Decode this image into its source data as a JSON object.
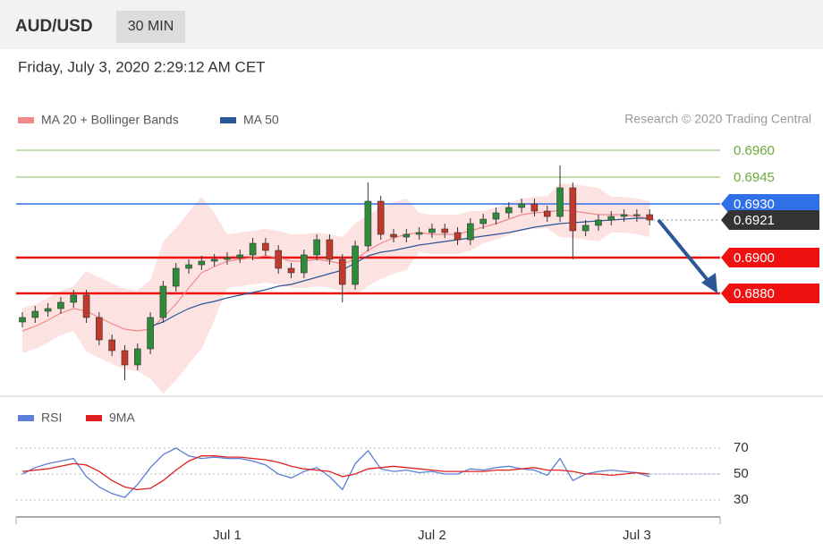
{
  "header": {
    "symbol": "AUD/USD",
    "interval": "30 MIN",
    "datetime": "Friday, July 3, 2020 2:29:12 AM CET",
    "credit": "Research © 2020 Trading Central"
  },
  "chart_data": [
    {
      "type": "candlestick",
      "categories": [
        null,
        null,
        null,
        null,
        null,
        null,
        null,
        null,
        null,
        null,
        null,
        null,
        null,
        null,
        null,
        null,
        "Jul 1",
        null,
        null,
        null,
        null,
        null,
        null,
        null,
        null,
        null,
        null,
        null,
        null,
        null,
        null,
        null,
        "Jul 2",
        null,
        null,
        null,
        null,
        null,
        null,
        null,
        null,
        null,
        null,
        null,
        null,
        null,
        null,
        null,
        "Jul 3",
        null
      ],
      "open": [
        0.6864,
        0.68665,
        0.687,
        0.68715,
        0.6875,
        0.6879,
        0.68665,
        0.6854,
        0.6848,
        0.684,
        0.6849,
        0.68665,
        0.6884,
        0.6894,
        0.6896,
        0.6898,
        0.6899,
        0.69,
        0.69015,
        0.6908,
        0.6904,
        0.6894,
        0.68915,
        0.69015,
        0.691,
        0.6899,
        0.6885,
        0.69065,
        0.69315,
        0.6913,
        0.69115,
        0.6913,
        0.6914,
        0.6916,
        0.6914,
        0.691,
        0.6919,
        0.69215,
        0.6925,
        0.6928,
        0.693,
        0.6926,
        0.6923,
        0.6939,
        0.6915,
        0.6918,
        0.6921,
        0.6923,
        0.6924,
        0.6924
      ],
      "high": [
        0.68695,
        0.6873,
        0.68745,
        0.6878,
        0.6882,
        0.6882,
        0.68695,
        0.6857,
        0.6851,
        0.6852,
        0.68695,
        0.6887,
        0.6897,
        0.6899,
        0.6901,
        0.6902,
        0.6903,
        0.69045,
        0.6911,
        0.6911,
        0.6907,
        0.6897,
        0.69045,
        0.6913,
        0.6913,
        0.6902,
        0.69095,
        0.6942,
        0.69345,
        0.6916,
        0.6916,
        0.6917,
        0.6919,
        0.6919,
        0.6917,
        0.6922,
        0.69245,
        0.6928,
        0.6931,
        0.6933,
        0.6933,
        0.6929,
        0.69515,
        0.6942,
        0.6921,
        0.6924,
        0.6926,
        0.6927,
        0.6927,
        0.6927
      ],
      "low": [
        0.6861,
        0.68635,
        0.6867,
        0.68685,
        0.6872,
        0.68635,
        0.6851,
        0.6845,
        0.68315,
        0.6837,
        0.6846,
        0.68635,
        0.6881,
        0.6891,
        0.6893,
        0.6895,
        0.6896,
        0.6897,
        0.68985,
        0.6901,
        0.6891,
        0.68885,
        0.68885,
        0.68985,
        0.6896,
        0.6875,
        0.6882,
        0.69035,
        0.691,
        0.69085,
        0.69085,
        0.691,
        0.6911,
        0.6911,
        0.6907,
        0.6907,
        0.6916,
        0.69185,
        0.6922,
        0.6925,
        0.6923,
        0.692,
        0.692,
        0.6899,
        0.6912,
        0.6915,
        0.6918,
        0.692,
        0.692,
        0.6918
      ],
      "close": [
        0.68665,
        0.687,
        0.68715,
        0.6875,
        0.6879,
        0.68665,
        0.6854,
        0.6848,
        0.684,
        0.6849,
        0.68665,
        0.6884,
        0.6894,
        0.6896,
        0.6898,
        0.6899,
        0.69,
        0.69015,
        0.6908,
        0.6904,
        0.6894,
        0.68915,
        0.69015,
        0.691,
        0.6899,
        0.6885,
        0.69065,
        0.69315,
        0.6913,
        0.69115,
        0.6913,
        0.6914,
        0.6916,
        0.6914,
        0.691,
        0.6919,
        0.69215,
        0.6925,
        0.6928,
        0.693,
        0.6926,
        0.6923,
        0.6939,
        0.6915,
        0.6918,
        0.6921,
        0.6923,
        0.6924,
        0.6924,
        0.6921
      ],
      "up_color": "#2e8b3a",
      "down_color": "#c0392b",
      "series": [
        {
          "name": "MA 20 + Bollinger Bands",
          "color": "#f08a8a",
          "band_color": "#fde2e2",
          "values": [
            0.6859,
            0.68615,
            0.6865,
            0.6869,
            0.68715,
            0.687,
            0.68665,
            0.6863,
            0.686,
            0.6859,
            0.686,
            0.68665,
            0.6874,
            0.6883,
            0.68915,
            0.6895,
            0.6898,
            0.6899,
            0.69,
            0.6901,
            0.69,
            0.6898,
            0.6898,
            0.6899,
            0.6898,
            0.68965,
            0.6899,
            0.6904,
            0.6908,
            0.6911,
            0.6913,
            0.6914,
            0.6913,
            0.6913,
            0.6913,
            0.6915,
            0.6917,
            0.6919,
            0.69215,
            0.6924,
            0.6925,
            0.69255,
            0.69265,
            0.6926,
            0.6925,
            0.6924,
            0.6924,
            0.6924,
            0.6923,
            0.69215
          ],
          "upper": [
            0.68715,
            0.6874,
            0.68775,
            0.68815,
            0.6884,
            0.68925,
            0.6889,
            0.68855,
            0.68825,
            0.68815,
            0.68875,
            0.6909,
            0.69165,
            0.69255,
            0.6934,
            0.6925,
            0.6913,
            0.6914,
            0.6915,
            0.6916,
            0.6915,
            0.6913,
            0.6913,
            0.6914,
            0.6913,
            0.69115,
            0.6919,
            0.6924,
            0.6928,
            0.6931,
            0.6933,
            0.6925,
            0.6924,
            0.6924,
            0.6924,
            0.6926,
            0.6926,
            0.6928,
            0.69305,
            0.6933,
            0.6934,
            0.69345,
            0.69415,
            0.6941,
            0.694,
            0.6939,
            0.6934,
            0.6934,
            0.6933,
            0.69315
          ],
          "lower": [
            0.68465,
            0.6849,
            0.68525,
            0.68565,
            0.6859,
            0.68475,
            0.6844,
            0.68405,
            0.68375,
            0.68365,
            0.68325,
            0.6824,
            0.68315,
            0.68405,
            0.6849,
            0.6865,
            0.6883,
            0.6884,
            0.6885,
            0.6886,
            0.6885,
            0.6883,
            0.6883,
            0.6884,
            0.6883,
            0.68815,
            0.6879,
            0.6884,
            0.6888,
            0.6891,
            0.6893,
            0.6903,
            0.6902,
            0.6902,
            0.6902,
            0.6904,
            0.6908,
            0.691,
            0.69125,
            0.6915,
            0.6916,
            0.69165,
            0.69115,
            0.6911,
            0.691,
            0.6909,
            0.6914,
            0.6914,
            0.6913,
            0.69115
          ]
        },
        {
          "name": "MA 50",
          "color": "#2b5797",
          "values": [
            null,
            null,
            null,
            null,
            null,
            null,
            null,
            null,
            null,
            null,
            0.68615,
            0.6864,
            0.6868,
            0.68715,
            0.6874,
            0.68755,
            0.68775,
            0.6879,
            0.68805,
            0.6882,
            0.6884,
            0.6885,
            0.6887,
            0.6889,
            0.6891,
            0.6893,
            0.6897,
            0.6901,
            0.6903,
            0.6904,
            0.69055,
            0.6907,
            0.6908,
            0.6909,
            0.691,
            0.6911,
            0.6912,
            0.6913,
            0.6914,
            0.69155,
            0.6917,
            0.6918,
            0.6919,
            0.69195,
            0.692,
            0.69205,
            0.6921,
            0.69215,
            0.6922,
            0.6922
          ]
        }
      ],
      "ylim": [
        0.6824,
        0.6969
      ],
      "levels": [
        {
          "value": 0.696,
          "label": "0.6960",
          "color": "#6aab3a",
          "boxed": false
        },
        {
          "value": 0.6945,
          "label": "0.6945",
          "color": "#6aab3a",
          "boxed": false
        },
        {
          "value": 0.693,
          "label": "0.6930",
          "color": "#2f6fe8",
          "boxed": true
        },
        {
          "value": 0.69,
          "label": "0.6900",
          "color": "#ee1111",
          "boxed": true
        },
        {
          "value": 0.688,
          "label": "0.6880",
          "color": "#ee1111",
          "boxed": true
        }
      ],
      "last_price": {
        "value": 0.6921,
        "label": "0.6921",
        "color": "#333333"
      }
    },
    {
      "type": "line",
      "categories": [
        null,
        null,
        null,
        null,
        null,
        null,
        null,
        null,
        null,
        null,
        null,
        null,
        null,
        null,
        null,
        null,
        "Jul 1",
        null,
        null,
        null,
        null,
        null,
        null,
        null,
        null,
        null,
        null,
        null,
        null,
        null,
        null,
        null,
        "Jul 2",
        null,
        null,
        null,
        null,
        null,
        null,
        null,
        null,
        null,
        null,
        null,
        null,
        null,
        null,
        null,
        "Jul 3",
        null
      ],
      "series": [
        {
          "name": "RSI",
          "color": "#5b7fd6",
          "values": [
            50,
            55,
            58,
            60,
            62,
            48,
            40,
            35,
            32,
            42,
            55,
            65,
            70,
            64,
            62,
            63,
            62,
            62,
            60,
            57,
            50,
            47,
            52,
            55,
            48,
            38,
            58,
            68,
            54,
            52,
            53,
            51,
            52,
            50,
            50,
            54,
            53,
            55,
            56,
            54,
            53,
            49,
            62,
            45,
            50,
            52,
            53,
            52,
            51,
            48
          ]
        },
        {
          "name": "9MA",
          "color": "#e02020",
          "values": [
            52,
            53,
            54,
            56,
            58,
            57,
            52,
            45,
            40,
            38,
            39,
            45,
            53,
            60,
            64,
            64,
            63,
            63,
            62,
            61,
            59,
            56,
            54,
            53,
            52,
            48,
            50,
            54,
            55,
            56,
            55,
            54,
            53,
            52,
            52,
            52,
            52,
            53,
            53,
            54,
            55,
            53,
            53,
            52,
            50,
            50,
            49,
            50,
            51,
            50
          ]
        }
      ],
      "ylim": [
        20,
        78
      ],
      "yticks": [
        30,
        50,
        70
      ]
    }
  ]
}
